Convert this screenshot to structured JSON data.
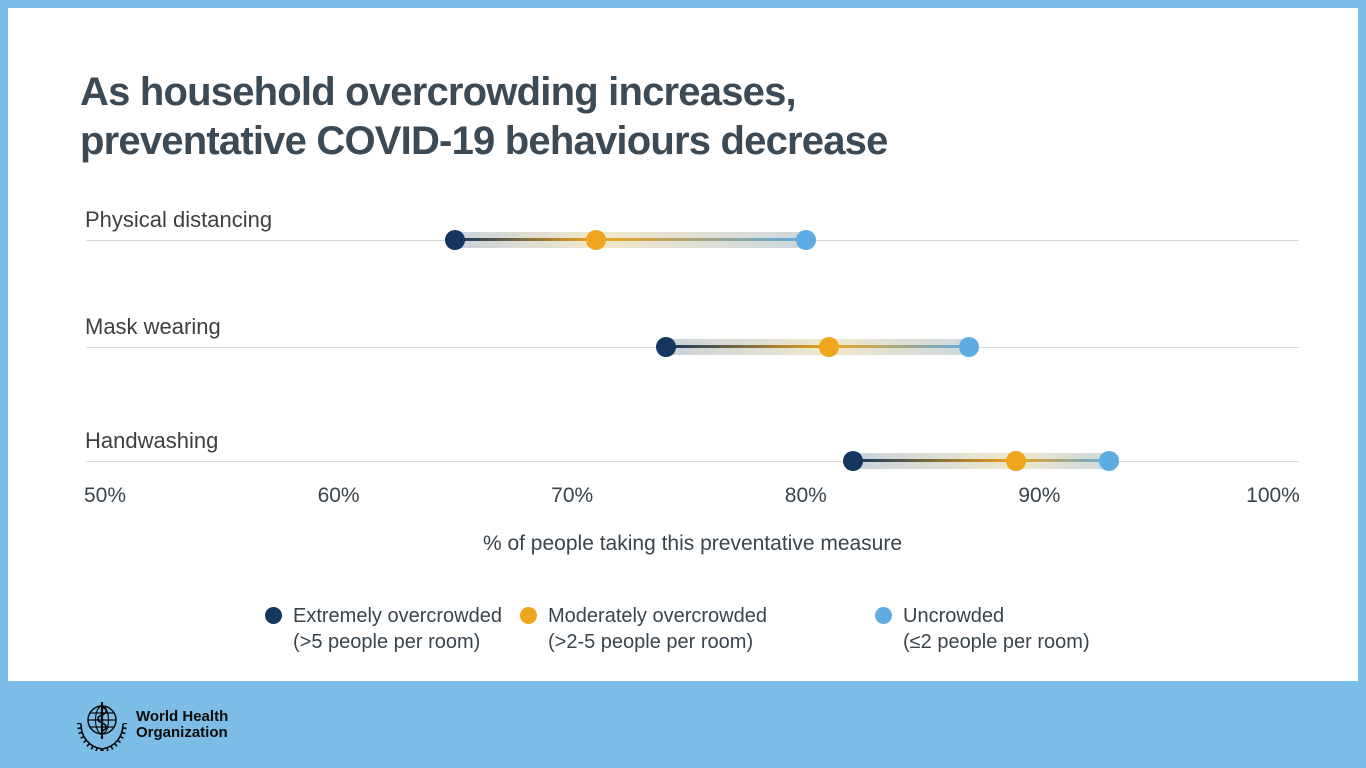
{
  "page": {
    "background_color": "#7CBDE8",
    "card_color": "#FFFFFF"
  },
  "title": {
    "line1": "As household overcrowding increases,",
    "line2": "preventative COVID-19 behaviours decrease",
    "color": "#3B4A54"
  },
  "chart_data": {
    "type": "dumbbell",
    "title": "As household overcrowding increases, preventative COVID-19 behaviours decrease",
    "categories": [
      "Physical distancing",
      "Mask wearing",
      "Handwashing"
    ],
    "series": [
      {
        "name": "Extremely overcrowded",
        "detail": "(>5 people per room)",
        "color": "#14365F",
        "values": [
          65,
          74,
          82
        ]
      },
      {
        "name": "Moderately overcrowded",
        "detail": "(>2-5 people per room)",
        "color": "#F0A51E",
        "values": [
          71,
          81,
          89
        ]
      },
      {
        "name": "Uncrowded",
        "detail": "(≤2 people per room)",
        "color": "#5FACE3",
        "values": [
          80,
          87,
          93
        ]
      }
    ],
    "xlabel": "% of people taking this preventative measure",
    "x_ticks": [
      {
        "value": 50,
        "label": "50%"
      },
      {
        "value": 60,
        "label": "60%"
      },
      {
        "value": 70,
        "label": "70%"
      },
      {
        "value": 80,
        "label": "80%"
      },
      {
        "value": 90,
        "label": "90%"
      },
      {
        "value": 100,
        "label": "100%"
      }
    ],
    "xlim": [
      50,
      100
    ],
    "grid": "horizontal row lines only",
    "legend_position": "bottom",
    "band_colors": [
      "#C8D1DB",
      "#EFE8CB",
      "#CBD6DF"
    ],
    "gridline_color": "#D9D9D9"
  },
  "footer": {
    "org_line1": "World Health",
    "org_line2": "Organization"
  }
}
